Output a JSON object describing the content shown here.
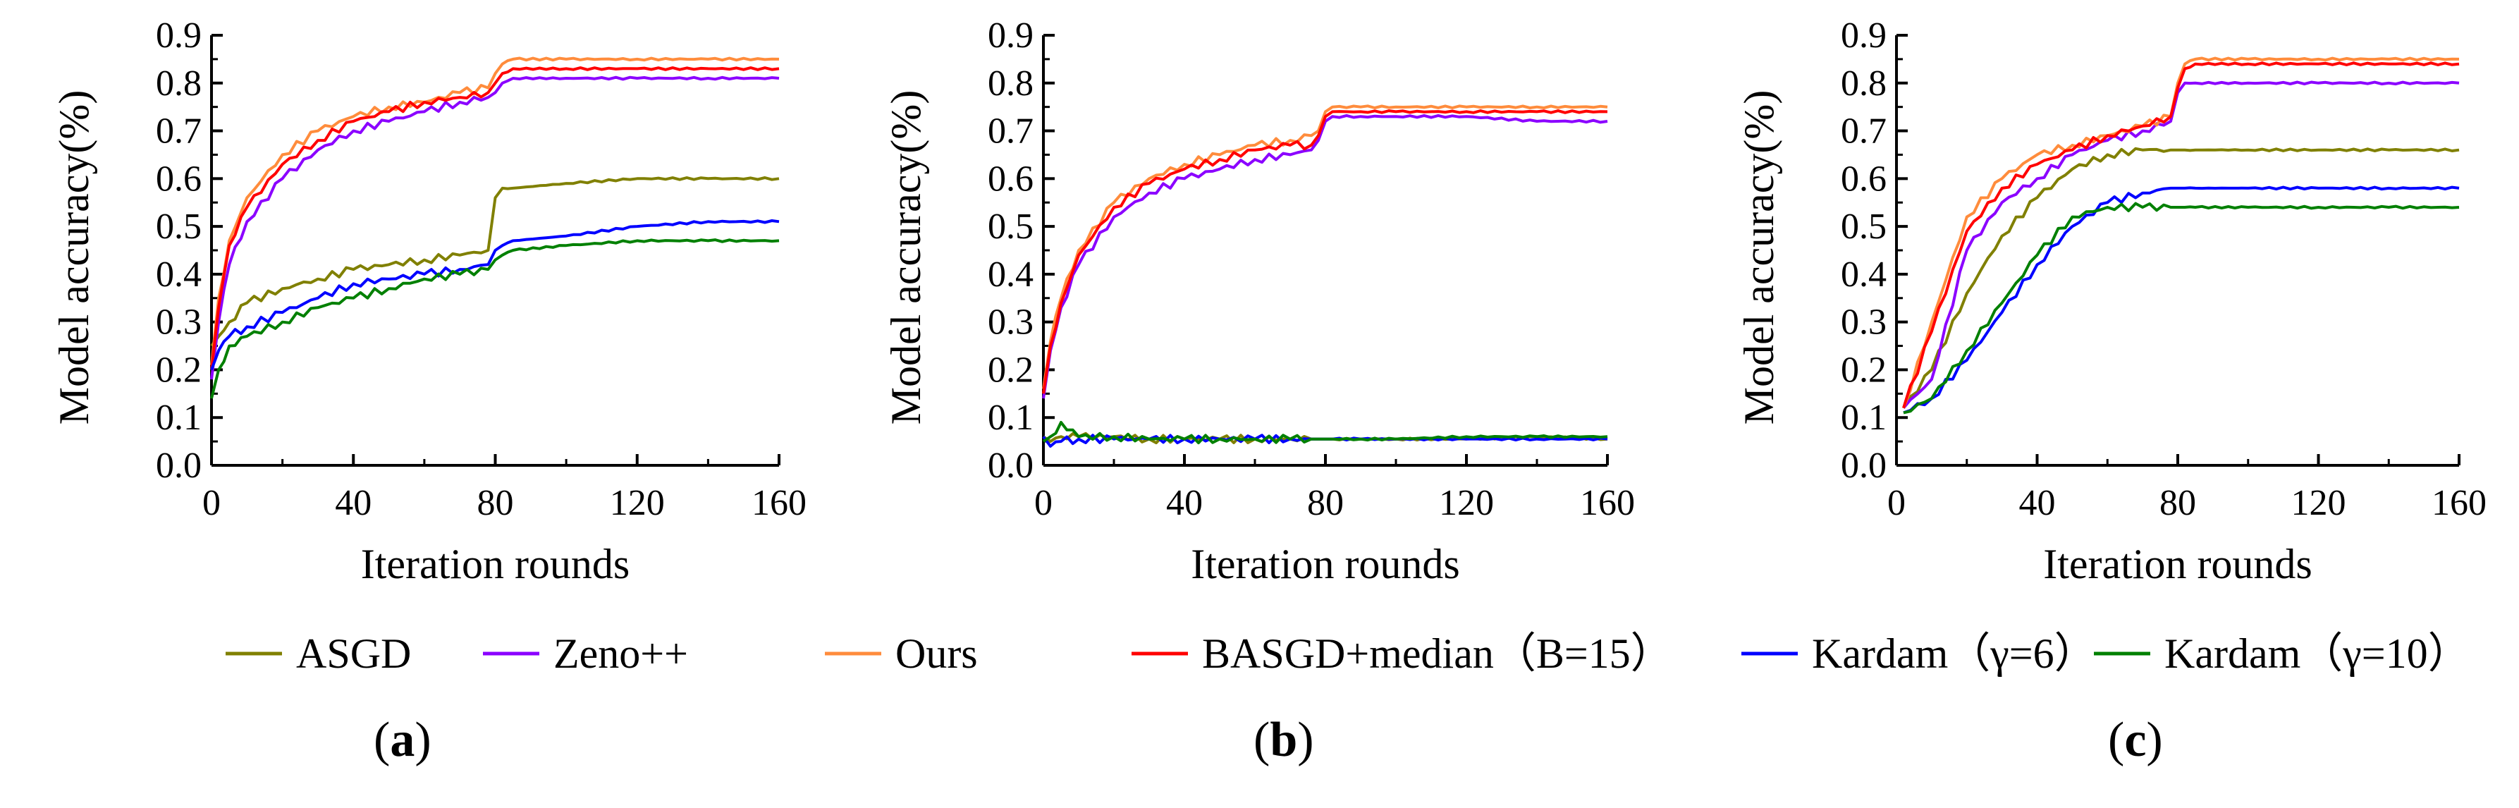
{
  "colors": {
    "ASGD": "#808000",
    "Zeno++": "#8b00ff",
    "Ours": "#ff8c3c",
    "BASGD+median (B=15)": "#ff0000",
    "Kardam (γ=6)": "#0000ff",
    "Kardam (γ=10)": "#008000"
  },
  "legend": {
    "items": [
      {
        "key": "ASGD",
        "label": "ASGD",
        "color": "#808000"
      },
      {
        "key": "Zeno++",
        "label": "Zeno++",
        "color": "#8b00ff"
      },
      {
        "key": "Ours",
        "label": "Ours",
        "color": "#ff8c3c"
      },
      {
        "key": "BASGD+median (B=15)",
        "label": "BASGD+median（B=15）",
        "color": "#ff0000"
      },
      {
        "key": "Kardam (γ=6)",
        "label": "Kardam（γ=6）",
        "color": "#0000ff"
      },
      {
        "key": "Kardam (γ=10)",
        "label": "Kardam（γ=10）",
        "color": "#008000"
      }
    ]
  },
  "captions": [
    {
      "open": "(",
      "letter": "a",
      "close": ")"
    },
    {
      "open": "(",
      "letter": "b",
      "close": ")"
    },
    {
      "open": "(",
      "letter": "c",
      "close": ")"
    }
  ],
  "chart_data": [
    {
      "type": "line",
      "panel": "a",
      "title": "",
      "xlabel": "Iteration rounds",
      "ylabel": "Model accuracy(%)",
      "xlim": [
        0,
        160
      ],
      "ylim": [
        0,
        0.9
      ],
      "xticks": [
        0,
        40,
        80,
        120,
        160
      ],
      "yticks": [
        0.0,
        0.1,
        0.2,
        0.3,
        0.4,
        0.5,
        0.6,
        0.7,
        0.8,
        0.9
      ],
      "x": [
        0,
        2,
        5,
        10,
        20,
        30,
        40,
        50,
        60,
        70,
        78,
        80,
        82,
        85,
        100,
        120,
        140,
        160
      ],
      "series": [
        {
          "name": "ASGD",
          "values": [
            0.25,
            0.27,
            0.3,
            0.34,
            0.37,
            0.39,
            0.41,
            0.42,
            0.43,
            0.44,
            0.45,
            0.56,
            0.58,
            0.58,
            0.59,
            0.6,
            0.6,
            0.6
          ]
        },
        {
          "name": "Zeno++",
          "values": [
            0.18,
            0.3,
            0.42,
            0.51,
            0.6,
            0.66,
            0.7,
            0.72,
            0.74,
            0.76,
            0.77,
            0.78,
            0.8,
            0.81,
            0.81,
            0.81,
            0.81,
            0.81
          ]
        },
        {
          "name": "Ours",
          "values": [
            0.21,
            0.35,
            0.47,
            0.56,
            0.65,
            0.7,
            0.73,
            0.75,
            0.76,
            0.78,
            0.79,
            0.82,
            0.84,
            0.85,
            0.85,
            0.85,
            0.85,
            0.85
          ]
        },
        {
          "name": "BASGD+median (B=15)",
          "values": [
            0.2,
            0.33,
            0.46,
            0.54,
            0.63,
            0.68,
            0.72,
            0.74,
            0.76,
            0.77,
            0.78,
            0.8,
            0.82,
            0.83,
            0.83,
            0.83,
            0.83,
            0.83
          ]
        },
        {
          "name": "Kardam (γ=6)",
          "values": [
            0.2,
            0.24,
            0.27,
            0.29,
            0.32,
            0.35,
            0.38,
            0.39,
            0.4,
            0.41,
            0.42,
            0.45,
            0.46,
            0.47,
            0.48,
            0.5,
            0.51,
            0.51
          ]
        },
        {
          "name": "Kardam (γ=10)",
          "values": [
            0.14,
            0.2,
            0.25,
            0.27,
            0.3,
            0.33,
            0.35,
            0.37,
            0.39,
            0.4,
            0.41,
            0.43,
            0.44,
            0.45,
            0.46,
            0.47,
            0.47,
            0.47
          ]
        }
      ]
    },
    {
      "type": "line",
      "panel": "b",
      "title": "",
      "xlabel": "Iteration rounds",
      "ylabel": "Model accuracy(%)",
      "xlim": [
        0,
        160
      ],
      "ylim": [
        0,
        0.9
      ],
      "xticks": [
        0,
        40,
        80,
        120,
        160
      ],
      "yticks": [
        0.0,
        0.1,
        0.2,
        0.3,
        0.4,
        0.5,
        0.6,
        0.7,
        0.8,
        0.9
      ],
      "x": [
        0,
        2,
        5,
        10,
        20,
        30,
        40,
        50,
        60,
        70,
        76,
        78,
        80,
        82,
        90,
        100,
        120,
        140,
        160
      ],
      "series": [
        {
          "name": "Zeno++",
          "values": [
            0.14,
            0.24,
            0.33,
            0.42,
            0.52,
            0.57,
            0.6,
            0.62,
            0.64,
            0.65,
            0.66,
            0.68,
            0.72,
            0.73,
            0.73,
            0.73,
            0.73,
            0.72,
            0.72
          ]
        },
        {
          "name": "Ours",
          "values": [
            0.16,
            0.26,
            0.35,
            0.45,
            0.55,
            0.6,
            0.63,
            0.65,
            0.67,
            0.68,
            0.69,
            0.7,
            0.74,
            0.75,
            0.75,
            0.75,
            0.75,
            0.75,
            0.75
          ]
        },
        {
          "name": "BASGD+median (B=15)",
          "values": [
            0.15,
            0.25,
            0.34,
            0.44,
            0.54,
            0.59,
            0.62,
            0.64,
            0.66,
            0.67,
            0.67,
            0.69,
            0.73,
            0.74,
            0.74,
            0.74,
            0.74,
            0.74,
            0.74
          ]
        },
        {
          "name": "ASGD",
          "values": [
            0.06,
            0.05,
            0.06,
            0.06,
            0.06,
            0.055,
            0.055,
            0.055,
            0.055,
            0.055,
            0.055,
            0.055,
            0.055,
            0.055,
            0.055,
            0.055,
            0.055,
            0.06,
            0.055
          ]
        },
        {
          "name": "Kardam (γ=6)",
          "values": [
            0.06,
            0.04,
            0.05,
            0.055,
            0.055,
            0.055,
            0.055,
            0.055,
            0.055,
            0.055,
            0.055,
            0.055,
            0.055,
            0.055,
            0.055,
            0.055,
            0.055,
            0.055,
            0.055
          ]
        },
        {
          "name": "Kardam (γ=10)",
          "values": [
            0.05,
            0.06,
            0.09,
            0.06,
            0.06,
            0.055,
            0.055,
            0.055,
            0.055,
            0.055,
            0.055,
            0.055,
            0.055,
            0.055,
            0.055,
            0.055,
            0.06,
            0.06,
            0.06
          ]
        }
      ]
    },
    {
      "type": "line",
      "panel": "c",
      "title": "",
      "xlabel": "Iteration rounds",
      "ylabel": "Model accuracy(%)",
      "xlim": [
        0,
        160
      ],
      "ylim": [
        0,
        0.9
      ],
      "xticks": [
        0,
        40,
        80,
        120,
        160
      ],
      "yticks": [
        0.0,
        0.1,
        0.2,
        0.3,
        0.4,
        0.5,
        0.6,
        0.7,
        0.8,
        0.9
      ],
      "x": [
        2,
        10,
        20,
        30,
        40,
        50,
        60,
        70,
        78,
        80,
        82,
        85,
        100,
        120,
        140,
        160
      ],
      "series": [
        {
          "name": "ASGD",
          "values": [
            0.12,
            0.2,
            0.36,
            0.48,
            0.56,
            0.62,
            0.65,
            0.66,
            0.66,
            0.66,
            0.66,
            0.66,
            0.66,
            0.66,
            0.66,
            0.66
          ]
        },
        {
          "name": "Zeno++",
          "values": [
            0.12,
            0.18,
            0.45,
            0.55,
            0.6,
            0.65,
            0.68,
            0.7,
            0.72,
            0.78,
            0.8,
            0.8,
            0.8,
            0.8,
            0.8,
            0.8
          ]
        },
        {
          "name": "Ours",
          "values": [
            0.12,
            0.3,
            0.52,
            0.6,
            0.65,
            0.67,
            0.69,
            0.71,
            0.73,
            0.8,
            0.84,
            0.85,
            0.85,
            0.85,
            0.85,
            0.85
          ]
        },
        {
          "name": "BASGD+median (B=15)",
          "values": [
            0.12,
            0.28,
            0.49,
            0.58,
            0.63,
            0.66,
            0.69,
            0.71,
            0.73,
            0.79,
            0.83,
            0.84,
            0.84,
            0.84,
            0.84,
            0.84
          ]
        },
        {
          "name": "Kardam (γ=6)",
          "values": [
            0.11,
            0.14,
            0.22,
            0.32,
            0.42,
            0.5,
            0.55,
            0.57,
            0.58,
            0.58,
            0.58,
            0.58,
            0.58,
            0.58,
            0.58,
            0.58
          ]
        },
        {
          "name": "Kardam (γ=10)",
          "values": [
            0.11,
            0.14,
            0.24,
            0.34,
            0.44,
            0.52,
            0.54,
            0.54,
            0.54,
            0.54,
            0.54,
            0.54,
            0.54,
            0.54,
            0.54,
            0.54
          ]
        }
      ]
    }
  ]
}
